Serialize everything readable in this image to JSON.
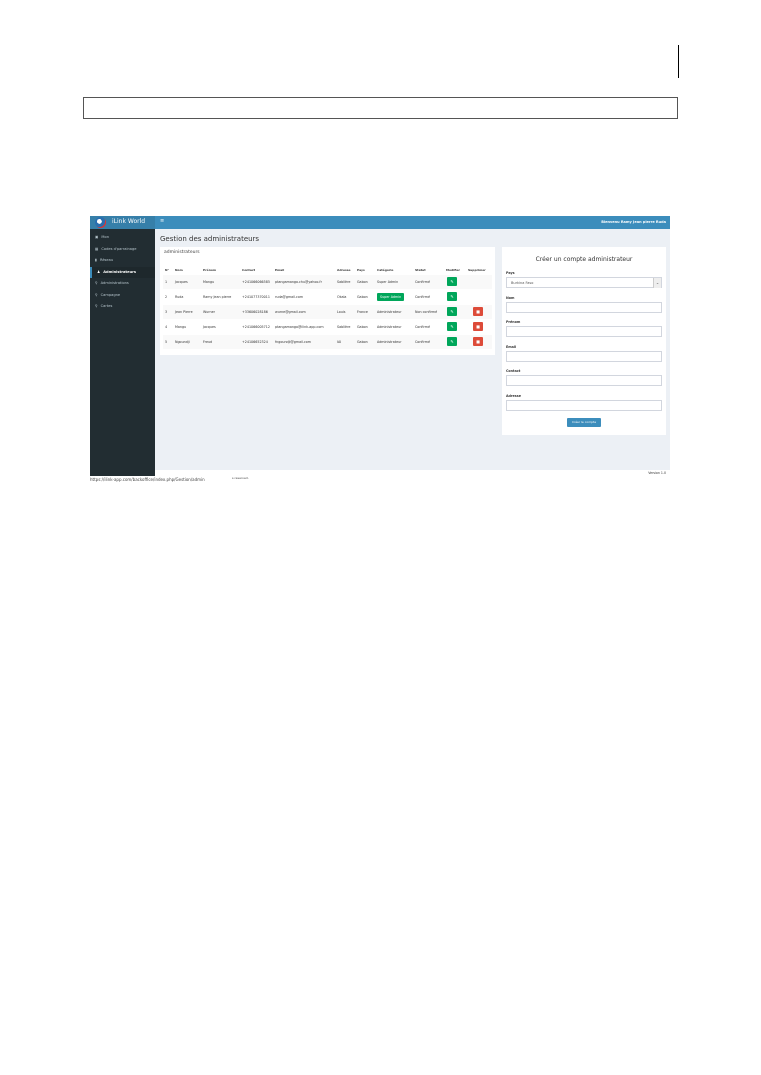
{
  "app": {
    "brand": "iLink World",
    "menu_icon": "hamburger-icon",
    "welcome": "Bienvenu Ramy Jean pierre Ruda"
  },
  "sidebar": {
    "items": [
      {
        "label": "Mon",
        "icon": "dashboard-icon"
      },
      {
        "label": "Codes d'parrainage",
        "icon": "grid-icon"
      },
      {
        "label": "Réseau",
        "icon": "chart-icon"
      },
      {
        "label": "Administrateurs",
        "icon": "user-icon",
        "active": true
      },
      {
        "label": "Administrations",
        "icon": "marker-icon"
      },
      {
        "label": "Campagne",
        "icon": "marker-icon"
      },
      {
        "label": "Cartes",
        "icon": "marker-icon"
      }
    ]
  },
  "page": {
    "title": "Gestion des administrateurs"
  },
  "table": {
    "title": "administrateurs",
    "headers": [
      "N°",
      "Nom",
      "Prénom",
      "Contact",
      "Email",
      "Adresse",
      "Pays",
      "Catégorie",
      "Statut",
      "Modifier",
      "Supprimer"
    ],
    "rows": [
      [
        "1",
        "Jacques",
        "Mangu",
        "+241066066585",
        "ptangamango.chu@yahoo.fr",
        "Sablière",
        "Gabon",
        "Super Admin",
        "Confirmé"
      ],
      [
        "2",
        "Ruda",
        "Ramy Jean pierre",
        "+241077370011",
        "ruda@gmail.com",
        "Okala",
        "Gabon",
        "Super Admin",
        "Confirmé"
      ],
      [
        "3",
        "Jean Pierre",
        "Wurner",
        "+33606028186",
        "wurne@gmail.com",
        "Louis",
        "France",
        "Administrateur",
        "Non confirmé"
      ],
      [
        "4",
        "Mangu",
        "Jacques",
        "+241066005712",
        "ptangamango@ilink-app.com",
        "Sablière",
        "Gabon",
        "Administrateur",
        "Confirmé"
      ],
      [
        "5",
        "Ngoundji",
        "Freud",
        "+24106652324",
        "fngoundji@gmail.com",
        "IAI",
        "Gabon",
        "Administrateur",
        "Confirmé"
      ]
    ],
    "edit_icon": "edit-icon",
    "delete_icon": "trash-icon",
    "colors": {
      "edit": "#00a65a",
      "delete": "#dd4b39"
    }
  },
  "form": {
    "title": "Créer un compte administrateur",
    "fields": [
      {
        "label": "Pays",
        "value": "Burkina Faso"
      },
      {
        "label": "Nom",
        "value": ""
      },
      {
        "label": "Prénom",
        "value": ""
      },
      {
        "label": "Email",
        "value": ""
      },
      {
        "label": "Contact",
        "value": ""
      },
      {
        "label": "Adresse",
        "value": ""
      }
    ],
    "submit": "Créer le compte"
  },
  "footer": {
    "reserved": "s reserved.",
    "version": "Version 1.0"
  },
  "statusbar": {
    "url": "https://ilink-app.com/backoffice/index.php/Gestion/admin"
  },
  "colors": {
    "topbar": "#3c8dbc",
    "sidebar": "#222d32",
    "content": "#ecf0f5"
  }
}
